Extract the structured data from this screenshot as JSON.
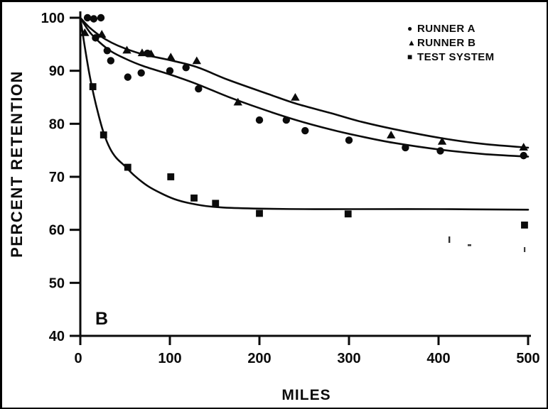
{
  "figure": {
    "panel_label": "B",
    "background_color": "#ffffff",
    "frame_color": "#000000",
    "ink_color": "#0b0b0b"
  },
  "chart_data": {
    "type": "scatter",
    "title": "",
    "xlabel": "MILES",
    "ylabel": "PERCENT RETENTION",
    "xlim": [
      0,
      500
    ],
    "ylim": [
      40,
      100
    ],
    "x_ticks": [
      0,
      100,
      200,
      300,
      400,
      500
    ],
    "y_ticks": [
      100,
      90,
      80,
      70,
      60,
      50,
      40
    ],
    "grid": false,
    "legend_position": "top-right",
    "marker_color": "#0b0b0b",
    "series": [
      {
        "name": "RUNNER A",
        "marker": "circle",
        "points": [
          [
            8,
            100
          ],
          [
            15,
            99.8
          ],
          [
            23,
            100
          ],
          [
            17,
            96.2
          ],
          [
            30,
            93.8
          ],
          [
            34,
            91.9
          ],
          [
            53,
            88.8
          ],
          [
            68,
            89.6
          ],
          [
            75,
            93.3
          ],
          [
            100,
            90
          ],
          [
            118,
            90.6
          ],
          [
            132,
            86.6
          ],
          [
            200,
            80.7
          ],
          [
            230,
            80.7
          ],
          [
            251,
            78.7
          ],
          [
            300,
            76.9
          ],
          [
            363,
            75.5
          ],
          [
            402,
            74.9
          ],
          [
            495,
            74
          ]
        ],
        "curve": [
          [
            0,
            100
          ],
          [
            10,
            97.4
          ],
          [
            22,
            95.3
          ],
          [
            35,
            93.6
          ],
          [
            50,
            92.3
          ],
          [
            70,
            90.9
          ],
          [
            100,
            89.3
          ],
          [
            130,
            87.5
          ],
          [
            165,
            85.1
          ],
          [
            201,
            82.9
          ],
          [
            241,
            80.7
          ],
          [
            280,
            78.9
          ],
          [
            311,
            77.7
          ],
          [
            350,
            76.4
          ],
          [
            403,
            75.1
          ],
          [
            450,
            74.3
          ],
          [
            500,
            73.8
          ]
        ]
      },
      {
        "name": "RUNNER B",
        "marker": "triangle",
        "points": [
          [
            5,
            97.2
          ],
          [
            24,
            96.9
          ],
          [
            52,
            93.9
          ],
          [
            69,
            93.4
          ],
          [
            79,
            93.2
          ],
          [
            101,
            92.6
          ],
          [
            130,
            91.9
          ],
          [
            176,
            84.1
          ],
          [
            240,
            85
          ],
          [
            347,
            77.9
          ],
          [
            404,
            76.7
          ],
          [
            495,
            75.6
          ]
        ],
        "curve": [
          [
            0,
            100
          ],
          [
            10,
            98.2
          ],
          [
            22,
            96.6
          ],
          [
            35,
            95.3
          ],
          [
            50,
            94.2
          ],
          [
            70,
            93.1
          ],
          [
            100,
            92
          ],
          [
            130,
            90.7
          ],
          [
            165,
            88.3
          ],
          [
            210,
            85.6
          ],
          [
            241,
            83.8
          ],
          [
            280,
            82
          ],
          [
            311,
            80.5
          ],
          [
            350,
            79
          ],
          [
            403,
            77.3
          ],
          [
            450,
            76.2
          ],
          [
            500,
            75.5
          ]
        ]
      },
      {
        "name": "TEST SYSTEM",
        "marker": "square",
        "points": [
          [
            14,
            87
          ],
          [
            26,
            77.9
          ],
          [
            53,
            71.8
          ],
          [
            101,
            70
          ],
          [
            127,
            66
          ],
          [
            151,
            65
          ],
          [
            200,
            63.1
          ],
          [
            299,
            63
          ],
          [
            496,
            60.9
          ]
        ],
        "curve": [
          [
            0,
            100
          ],
          [
            5,
            94.5
          ],
          [
            10,
            89.5
          ],
          [
            15,
            85.4
          ],
          [
            20,
            81.9
          ],
          [
            26,
            78.3
          ],
          [
            33,
            75.4
          ],
          [
            40,
            73.6
          ],
          [
            50,
            72
          ],
          [
            60,
            70.3
          ],
          [
            75,
            68.3
          ],
          [
            90,
            66.9
          ],
          [
            105,
            65.8
          ],
          [
            120,
            65.1
          ],
          [
            140,
            64.5
          ],
          [
            160,
            64.2
          ],
          [
            200,
            64
          ],
          [
            250,
            63.9
          ],
          [
            300,
            63.9
          ],
          [
            400,
            63.9
          ],
          [
            500,
            63.8
          ]
        ]
      }
    ]
  }
}
